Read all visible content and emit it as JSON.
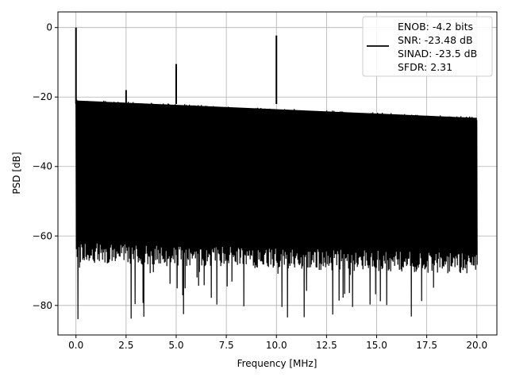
{
  "chart_data": {
    "type": "line",
    "xlabel": "Frequency [MHz]",
    "ylabel": "PSD [dB]",
    "xlim": [
      -0.9,
      21.0
    ],
    "ylim": [
      -88.5,
      4.5
    ],
    "xticks": [
      0.0,
      2.5,
      5.0,
      7.5,
      10.0,
      12.5,
      15.0,
      17.5,
      20.0
    ],
    "xtick_labels": [
      "0.0",
      "2.5",
      "5.0",
      "7.5",
      "10.0",
      "12.5",
      "15.0",
      "17.5",
      "20.0"
    ],
    "yticks": [
      0,
      -20,
      -40,
      -60,
      -80
    ],
    "ytick_labels": [
      "0",
      "−20",
      "−40",
      "−60",
      "−80"
    ],
    "grid": true,
    "legend_position": "top-right",
    "series": [
      {
        "name": "ENOB: -4.2 bits\nSNR: -23.48 dB\nSINAD: -23.5 dB\nSFDR: 2.31",
        "legend_lines": [
          "ENOB: -4.2 bits",
          "SNR: -23.48 dB",
          "SINAD: -23.5 dB",
          "SFDR: 2.31"
        ],
        "color": "#000000",
        "noise_band": {
          "x_range": [
            0.0,
            20.0
          ],
          "upper_start": -22,
          "upper_end": -27,
          "lower_start": -62,
          "lower_end": -65,
          "deep_dips_min": -84
        },
        "peaks": [
          {
            "x": 0.0,
            "y": 0.0
          },
          {
            "x": 2.5,
            "y": -18.0
          },
          {
            "x": 5.0,
            "y": -10.5
          },
          {
            "x": 10.0,
            "y": -2.3
          }
        ]
      }
    ]
  }
}
